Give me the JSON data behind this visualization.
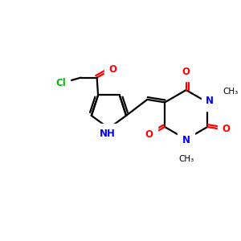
{
  "bg_color": "#ffffff",
  "bond_color": "#000000",
  "N_color": "#0000ff",
  "O_color": "#ff0000",
  "Cl_color": "#00bb00",
  "bond_width": 1.6,
  "font_size": 8.5,
  "figsize": [
    3.0,
    3.0
  ],
  "dpi": 100,
  "xlim": [
    0,
    10
  ],
  "ylim": [
    0,
    10
  ]
}
